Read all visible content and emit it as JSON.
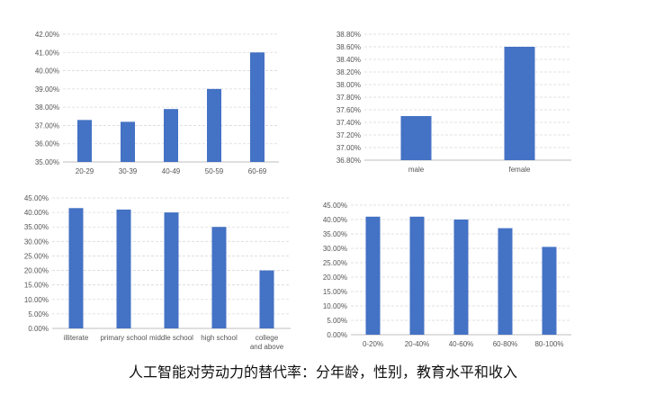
{
  "caption": "人工智能对劳动力的替代率：分年龄，性别，教育水平和收入",
  "colors": {
    "bar": "#4472c4"
  },
  "chart_data": [
    {
      "type": "bar",
      "title": "",
      "categories": [
        "20-29",
        "30-39",
        "40-49",
        "50-59",
        "60-69"
      ],
      "values": [
        37.3,
        37.2,
        37.9,
        39.0,
        41.0
      ],
      "ylim": [
        35.0,
        42.0
      ],
      "yticks": [
        "35.00%",
        "36.00%",
        "37.00%",
        "38.00%",
        "39.00%",
        "40.00%",
        "41.00%",
        "42.00%"
      ],
      "grid": true,
      "legend": "none"
    },
    {
      "type": "bar",
      "title": "",
      "categories": [
        "male",
        "female"
      ],
      "values": [
        37.5,
        38.6
      ],
      "ylim": [
        36.8,
        38.8
      ],
      "yticks": [
        "36.80%",
        "37.00%",
        "37.20%",
        "37.40%",
        "37.60%",
        "37.80%",
        "38.00%",
        "38.20%",
        "38.40%",
        "38.60%",
        "38.80%"
      ],
      "grid": true,
      "legend": "none"
    },
    {
      "type": "bar",
      "title": "",
      "categories": [
        "illiterate",
        "primary school",
        "middle school",
        "high school",
        "college and above"
      ],
      "values": [
        41.5,
        41.0,
        40.0,
        35.0,
        20.0
      ],
      "ylim": [
        0,
        45
      ],
      "yticks": [
        "0.00%",
        "5.00%",
        "10.00%",
        "15.00%",
        "20.00%",
        "25.00%",
        "30.00%",
        "35.00%",
        "40.00%",
        "45.00%"
      ],
      "grid": true,
      "legend": "none"
    },
    {
      "type": "bar",
      "title": "",
      "categories": [
        "0-20%",
        "20-40%",
        "40-60%",
        "60-80%",
        "80-100%"
      ],
      "values": [
        41.0,
        41.0,
        40.0,
        37.0,
        30.5
      ],
      "ylim": [
        0,
        45
      ],
      "yticks": [
        "0.00%",
        "5.00%",
        "10.00%",
        "15.00%",
        "20.00%",
        "25.00%",
        "30.00%",
        "35.00%",
        "40.00%",
        "45.00%"
      ],
      "grid": true,
      "legend": "none"
    }
  ]
}
